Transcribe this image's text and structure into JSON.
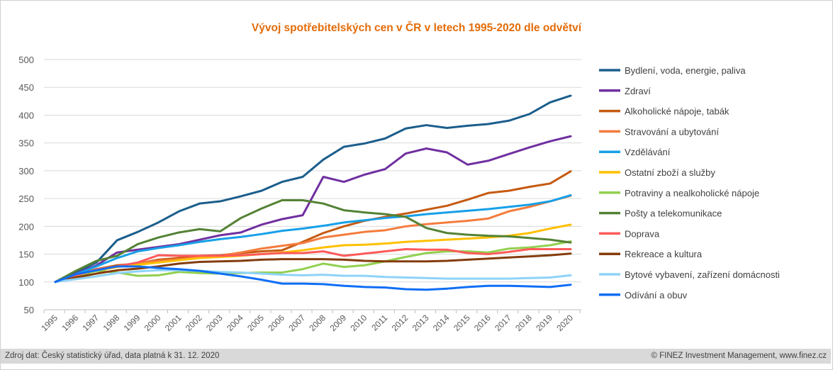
{
  "chart_data": {
    "type": "line",
    "title": "Vývoj spotřebitelských cen v ČR v letech 1995-2020 dle odvětví",
    "xlabel": "",
    "ylabel": "",
    "ylim": [
      50,
      500
    ],
    "yticks": [
      50,
      100,
      150,
      200,
      250,
      300,
      350,
      400,
      450,
      500
    ],
    "grid": true,
    "legend": "right",
    "x": [
      "1995",
      "1996",
      "1997",
      "1998",
      "1999",
      "2000",
      "2001",
      "2002",
      "2003",
      "2004",
      "2005",
      "2006",
      "2007",
      "2008",
      "2009",
      "2010",
      "2011",
      "2012",
      "2013",
      "2014",
      "2015",
      "2016",
      "2017",
      "2018",
      "2019",
      "2020"
    ],
    "series": [
      {
        "name": "Bydlení, voda, energie, paliva",
        "color": "#1B5E8C",
        "values": [
          100,
          118,
          135,
          175,
          190,
          207,
          227,
          241,
          245,
          254,
          264,
          280,
          289,
          320,
          343,
          349,
          358,
          376,
          382,
          377,
          381,
          384,
          390,
          402,
          423,
          435
        ]
      },
      {
        "name": "Zdraví",
        "color": "#7030A0",
        "values": [
          100,
          115,
          130,
          153,
          158,
          163,
          168,
          176,
          184,
          189,
          203,
          213,
          220,
          289,
          280,
          293,
          303,
          331,
          340,
          333,
          311,
          318,
          330,
          342,
          353,
          362
        ]
      },
      {
        "name": "Alkoholické nápoje, tabák",
        "color": "#C55A11",
        "values": [
          100,
          112,
          123,
          130,
          133,
          140,
          143,
          147,
          148,
          152,
          155,
          157,
          172,
          188,
          200,
          210,
          217,
          223,
          230,
          237,
          248,
          260,
          264,
          271,
          277,
          299
        ]
      },
      {
        "name": "Stravování a ubytování",
        "color": "#F47C3C",
        "values": [
          100,
          112,
          122,
          128,
          134,
          138,
          141,
          144,
          147,
          153,
          160,
          165,
          170,
          180,
          185,
          190,
          193,
          200,
          204,
          207,
          210,
          214,
          227,
          235,
          245,
          255
        ]
      },
      {
        "name": "Vzdělávání",
        "color": "#16A0E8",
        "values": [
          100,
          114,
          128,
          143,
          155,
          161,
          166,
          172,
          177,
          181,
          186,
          192,
          196,
          201,
          207,
          211,
          215,
          218,
          222,
          225,
          228,
          231,
          235,
          239,
          245,
          256
        ]
      },
      {
        "name": "Ostatní zboží a služby",
        "color": "#FFC000",
        "values": [
          100,
          111,
          120,
          127,
          131,
          135,
          139,
          143,
          145,
          147,
          150,
          153,
          157,
          162,
          166,
          167,
          169,
          172,
          174,
          176,
          178,
          180,
          183,
          188,
          196,
          203
        ]
      },
      {
        "name": "Potraviny a nealkoholické nápoje",
        "color": "#92D050",
        "values": [
          100,
          110,
          120,
          117,
          111,
          112,
          118,
          116,
          115,
          116,
          117,
          117,
          123,
          133,
          127,
          130,
          137,
          145,
          152,
          155,
          155,
          153,
          160,
          162,
          166,
          173
        ]
      },
      {
        "name": "Pošty a telekomunikace",
        "color": "#548235",
        "values": [
          100,
          120,
          138,
          147,
          168,
          180,
          189,
          195,
          191,
          215,
          232,
          247,
          247,
          241,
          229,
          225,
          222,
          217,
          197,
          188,
          185,
          183,
          182,
          179,
          176,
          171
        ]
      },
      {
        "name": "Doprava",
        "color": "#FF5A5A",
        "values": [
          100,
          112,
          122,
          128,
          135,
          148,
          147,
          147,
          147,
          148,
          150,
          152,
          152,
          155,
          147,
          151,
          155,
          159,
          158,
          158,
          152,
          150,
          154,
          159,
          159,
          159
        ]
      },
      {
        "name": "Rekreace a kultura",
        "color": "#843C0C",
        "values": [
          100,
          108,
          115,
          121,
          124,
          128,
          133,
          136,
          137,
          138,
          140,
          141,
          141,
          141,
          140,
          138,
          137,
          137,
          137,
          138,
          140,
          142,
          144,
          146,
          148,
          151
        ]
      },
      {
        "name": "Bytové vybavení, zařízení domácnosti",
        "color": "#8FD3F7",
        "values": [
          100,
          105,
          110,
          116,
          119,
          121,
          121,
          120,
          118,
          117,
          115,
          113,
          112,
          113,
          111,
          111,
          109,
          108,
          107,
          106,
          106,
          106,
          106,
          107,
          108,
          112
        ]
      },
      {
        "name": "Odívání a obuv",
        "color": "#0F6EF5",
        "values": [
          100,
          114,
          121,
          128,
          128,
          125,
          123,
          120,
          115,
          110,
          104,
          97,
          97,
          96,
          93,
          91,
          90,
          87,
          86,
          88,
          91,
          93,
          93,
          92,
          91,
          95
        ]
      }
    ]
  },
  "footer": {
    "source": "Zdroj dat: Český statistický úřad, data platná k 31. 12. 2020",
    "copyright": "© FINEZ Investment Management, www.finez.cz"
  }
}
